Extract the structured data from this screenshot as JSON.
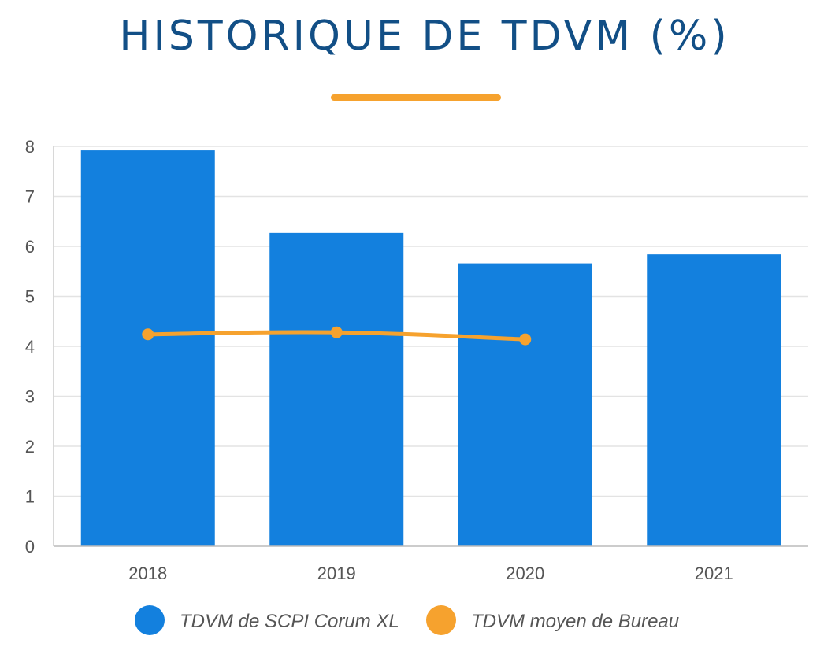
{
  "chart_data": {
    "type": "bar",
    "title": "HISTORIQUE DE TDVM (%)",
    "categories": [
      "2018",
      "2019",
      "2020",
      "2021"
    ],
    "ylim": [
      0,
      8
    ],
    "yticks": [
      "0",
      "1",
      "2",
      "3",
      "4",
      "5",
      "6",
      "7",
      "8"
    ],
    "grid": true,
    "legend_position": "bottom",
    "series": [
      {
        "name": "TDVM de SCPI Corum XL",
        "type": "bar",
        "color": "#1380de",
        "values": [
          7.92,
          6.27,
          5.66,
          5.84
        ]
      },
      {
        "name": "TDVM moyen de Bureau",
        "type": "line",
        "color": "#f6a22e",
        "values": [
          4.24,
          4.28,
          4.14,
          null
        ]
      }
    ]
  }
}
